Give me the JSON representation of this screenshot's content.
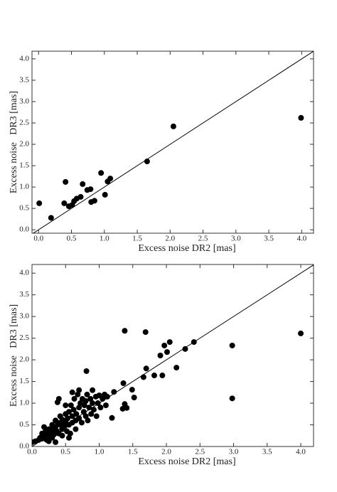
{
  "chart_data": [
    {
      "type": "scatter",
      "x_label": "Excess noise DR2 [mas]",
      "y_label": "Excess noise   DR3 [mas]",
      "color": "#000000",
      "diagonal": true,
      "xlim": [
        -0.1,
        4.18
      ],
      "ylim": [
        -0.08,
        4.18
      ],
      "xticks": [
        {
          "value": 0,
          "label": "0.0"
        },
        0.5,
        {
          "value": 1,
          "label": "1.0"
        },
        1.5,
        {
          "value": 2,
          "label": "2.0"
        },
        2.5,
        {
          "value": 3,
          "label": "3.0"
        },
        3.5,
        {
          "value": 4,
          "label": "4.0"
        }
      ],
      "yticks": [
        {
          "value": 0,
          "label": "0.0"
        },
        0.5,
        {
          "value": 1,
          "label": "1.0"
        },
        1.5,
        {
          "value": 2,
          "label": "2.0"
        },
        2.5,
        {
          "value": 3,
          "label": "3.0"
        },
        3.5,
        {
          "value": 4,
          "label": "4.0"
        }
      ],
      "x": [
        0.01,
        0.19,
        0.41,
        0.39,
        0.46,
        0.51,
        0.54,
        0.58,
        0.64,
        0.67,
        0.74,
        0.79,
        0.8,
        0.85,
        0.95,
        1.01,
        1.05,
        1.09,
        1.65,
        2.05,
        3.99
      ],
      "values": [
        0.62,
        0.28,
        1.12,
        0.62,
        0.55,
        0.58,
        0.67,
        0.73,
        0.77,
        1.07,
        0.93,
        0.95,
        0.65,
        0.68,
        1.33,
        0.82,
        1.13,
        1.2,
        1.6,
        2.42,
        2.62
      ]
    },
    {
      "type": "scatter",
      "x_label": "Excess noise DR2 [mas]",
      "y_label": "Excess noise   DR3 [mas]",
      "color": "#000000",
      "diagonal": true,
      "xlim": [
        0,
        4.19
      ],
      "ylim": [
        0,
        4.2
      ],
      "xticks": [
        {
          "value": 0,
          "label": "0.0"
        },
        0.5,
        {
          "value": 1,
          "label": "1.0"
        },
        1.5,
        {
          "value": 2,
          "label": "2.0"
        },
        2.5,
        {
          "value": 3,
          "label": "3.0"
        },
        3.5,
        {
          "value": 4,
          "label": "4.0"
        }
      ],
      "yticks": [
        {
          "value": 0,
          "label": "0.0"
        },
        0.5,
        {
          "value": 1,
          "label": "1.0"
        },
        1.5,
        {
          "value": 2,
          "label": "2.0"
        },
        2.5,
        {
          "value": 3,
          "label": "3.0"
        },
        3.5,
        {
          "value": 4,
          "label": "4.0"
        }
      ],
      "x": [
        1.38,
        1.69,
        0.81,
        2.98,
        2.98,
        4.0,
        2.41,
        2.28,
        2.05,
        1.97,
        2.01,
        1.91,
        2.15,
        1.94,
        1.82,
        1.7,
        1.66,
        1.49,
        1.52,
        1.36,
        1.38,
        1.41,
        1.35,
        1.22,
        1.19,
        0,
        0.05,
        0.1,
        0.12,
        0.15,
        0.15,
        0.18,
        0.2,
        0.2,
        0.22,
        0.25,
        0.25,
        0.28,
        0.3,
        0.3,
        0.32,
        0.33,
        0.35,
        0.35,
        0.37,
        0.38,
        0.38,
        0.4,
        0.4,
        0.42,
        0.42,
        0.45,
        0.45,
        0.47,
        0.48,
        0.5,
        0.5,
        0.52,
        0.53,
        0.55,
        0.55,
        0.57,
        0.58,
        0.6,
        0.6,
        0.62,
        0.63,
        0.65,
        0.66,
        0.68,
        0.7,
        0.7,
        0.72,
        0.74,
        0.75,
        0.77,
        0.78,
        0.8,
        0.8,
        0.82,
        0.83,
        0.85,
        0.87,
        0.88,
        0.9,
        0.9,
        0.92,
        0.95,
        0.96,
        0.98,
        1.0,
        1.02,
        1.05,
        1.08,
        1.1,
        1.12,
        0.25,
        0.3,
        0.45,
        0.35,
        0.55,
        0.65,
        0.7,
        0.6,
        0.5
      ],
      "values": [
        2.67,
        2.64,
        1.74,
        2.33,
        1.11,
        2.61,
        2.41,
        2.25,
        2.41,
        2.33,
        2.18,
        2.1,
        1.82,
        1.64,
        1.64,
        1.8,
        1.6,
        1.31,
        1.13,
        1.46,
        0.98,
        0.89,
        0.87,
        1.26,
        0.66,
        0.1,
        0.12,
        0.15,
        0.2,
        0.18,
        0.3,
        0.45,
        0.25,
        0.35,
        0.15,
        0.3,
        0.4,
        0.22,
        0.5,
        0.35,
        0.4,
        0.28,
        0.45,
        0.6,
        0.35,
        0.55,
        1.02,
        1.1,
        0.3,
        0.5,
        0.7,
        0.4,
        0.62,
        0.55,
        0.45,
        0.75,
        0.58,
        0.35,
        0.65,
        0.5,
        0.8,
        0.3,
        0.95,
        0.7,
        0.55,
        0.85,
        1.1,
        0.6,
        0.75,
        1.2,
        0.9,
        0.65,
        1.0,
        0.55,
        1.1,
        0.8,
        0.95,
        1.05,
        0.7,
        1.2,
        0.6,
        0.9,
        1.1,
        0.75,
        1.3,
        1.0,
        0.85,
        1.15,
        0.7,
        1.0,
        1.18,
        0.9,
        1.1,
        1.2,
        0.95,
        1.15,
        0.12,
        0.2,
        0.25,
        0.1,
        0.2,
        0.4,
        1.3,
        1.25,
        0.95
      ]
    }
  ]
}
